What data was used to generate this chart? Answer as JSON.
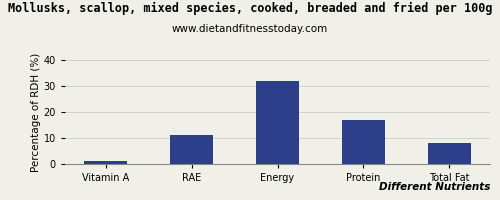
{
  "title": "Mollusks, scallop, mixed species, cooked, breaded and fried per 100g",
  "subtitle": "www.dietandfitnesstoday.com",
  "categories": [
    "Vitamin A",
    "RAE",
    "Energy",
    "Protein",
    "Total Fat"
  ],
  "values": [
    1,
    11,
    32,
    17,
    8
  ],
  "bar_color": "#2d3f8a",
  "ylabel": "Percentage of RDH (%)",
  "xlabel": "Different Nutrients",
  "ylim": [
    0,
    40
  ],
  "yticks": [
    0,
    10,
    20,
    30,
    40
  ],
  "background_color": "#f0f0e8",
  "title_fontsize": 8.5,
  "subtitle_fontsize": 7.5,
  "axis_label_fontsize": 7.5,
  "tick_fontsize": 7
}
